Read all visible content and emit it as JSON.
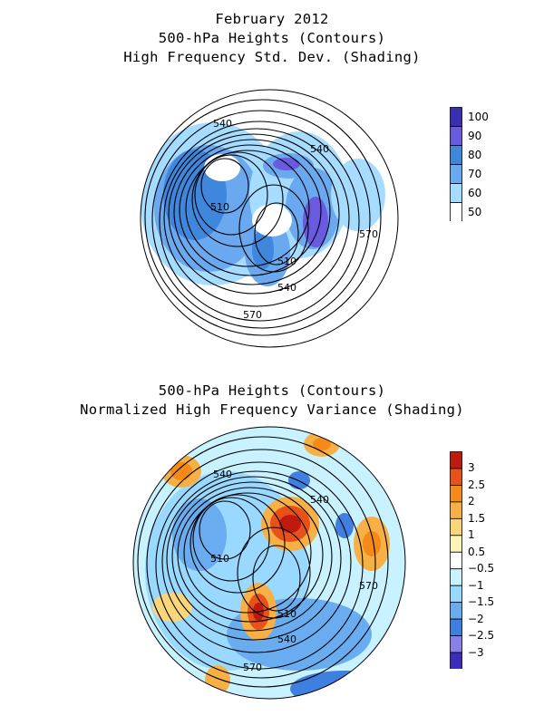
{
  "panels": [
    {
      "titles": [
        "February 2012",
        "500-hPa Heights (Contours)",
        "High Frequency Std. Dev. (Shading)"
      ],
      "contour_labels": [
        "540",
        "540",
        "510",
        "570",
        "510",
        "540",
        "570"
      ],
      "colorbar": {
        "levels": [
          "100",
          "90",
          "80",
          "70",
          "60",
          "50"
        ],
        "colors": [
          "#3a2fb0",
          "#6a5ae0",
          "#3f86dd",
          "#6aa8ef",
          "#a6dcff",
          "#ffffff"
        ]
      }
    },
    {
      "titles": [
        "500-hPa Heights (Contours)",
        "Normalized High Frequency Variance (Shading)"
      ],
      "contour_labels": [
        "540",
        "540",
        "510",
        "570",
        "510",
        "540",
        "570"
      ],
      "colorbar": {
        "levels": [
          "3",
          "2.5",
          "2",
          "1.5",
          "1",
          "0.5",
          "−0.5",
          "−1",
          "−1.5",
          "−2",
          "−2.5",
          "−3"
        ],
        "colors": [
          "#c01a10",
          "#e8521a",
          "#f58a18",
          "#f7b046",
          "#fad67a",
          "#fff2b8",
          "#ffffff",
          "#c8f2ff",
          "#9ad9ff",
          "#6aacf0",
          "#3f7fe0",
          "#8a7fe8",
          "#3a2ebb"
        ]
      }
    }
  ]
}
